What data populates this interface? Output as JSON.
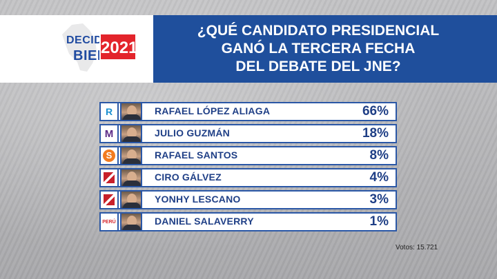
{
  "logo": {
    "decide": "DECIDE",
    "bien": "BIEN",
    "year": "2021"
  },
  "question": {
    "line1": "¿QUÉ CANDIDATO PRESIDENCIAL",
    "line2": "GANÓ LA TERCERA FECHA",
    "line3": "DEL DEBATE DEL JNE?"
  },
  "colors": {
    "header_blue": "#1f4f9c",
    "row_border": "#2a57a6",
    "text_blue": "#1f3f86",
    "logo_red": "#e3242b"
  },
  "chart_data": {
    "type": "table",
    "categories": [
      "RAFAEL LÓPEZ ALIAGA",
      "JULIO GUZMÁN",
      "RAFAEL SANTOS",
      "CIRO GÁLVEZ",
      "YONHY LESCANO",
      "DANIEL SALAVERRY"
    ],
    "values": [
      66,
      18,
      8,
      4,
      3,
      1
    ],
    "rows": [
      {
        "name": "RAFAEL LÓPEZ ALIAGA",
        "pct": "66%",
        "party_icon": "renovacion-popular-logo",
        "party_text": "R"
      },
      {
        "name": "JULIO GUZMÁN",
        "pct": "18%",
        "party_icon": "partido-morado-logo",
        "party_text": "M"
      },
      {
        "name": "RAFAEL SANTOS",
        "pct": "8%",
        "party_icon": "peru-patria-segura-logo",
        "party_text": "S"
      },
      {
        "name": "CIRO GÁLVEZ",
        "pct": "4%",
        "party_icon": "renacimiento-unido-logo",
        "party_text": ""
      },
      {
        "name": "YONHY LESCANO",
        "pct": "3%",
        "party_icon": "accion-popular-logo",
        "party_text": ""
      },
      {
        "name": "DANIEL SALAVERRY",
        "pct": "1%",
        "party_icon": "somos-peru-logo",
        "party_text": "PERÚ"
      }
    ]
  },
  "footer": {
    "votes": "Votos: 15.721"
  }
}
